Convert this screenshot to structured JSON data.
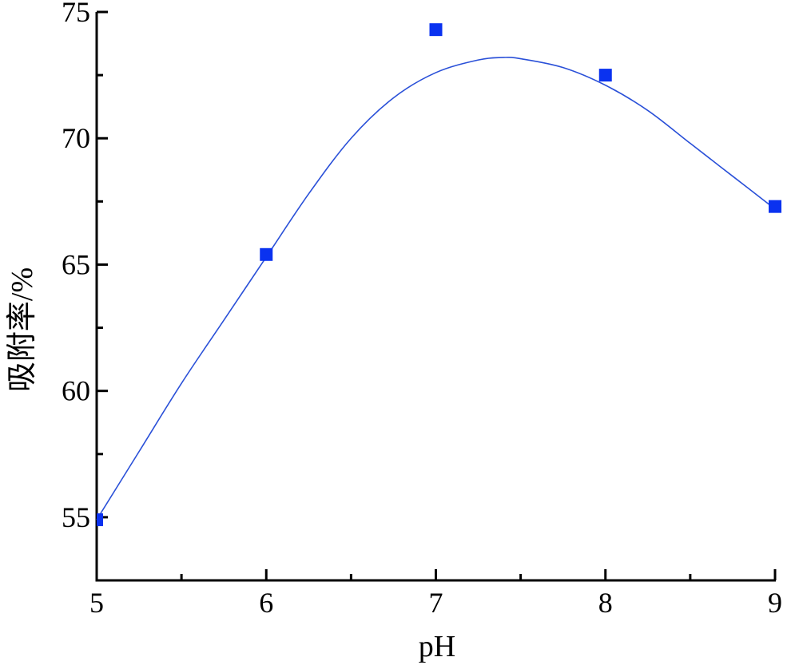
{
  "chart_data": {
    "type": "scatter",
    "title": "",
    "xlabel": "pH",
    "ylabel": "吸附率/%",
    "xlim": [
      5,
      9
    ],
    "ylim": [
      52.5,
      75
    ],
    "x_ticks": [
      5,
      6,
      7,
      8,
      9
    ],
    "x_tick_labels": [
      "5",
      "6",
      "7",
      "8",
      "9"
    ],
    "y_ticks": [
      55,
      60,
      65,
      70,
      75
    ],
    "y_tick_labels": [
      "55",
      "60",
      "65",
      "70",
      "75"
    ],
    "grid": false,
    "legend": "none",
    "series": [
      {
        "kind": "points",
        "marker": "square",
        "color": "#0a32f0",
        "x": [
          5,
          6,
          7,
          8,
          9
        ],
        "y": [
          54.9,
          65.4,
          74.3,
          72.5,
          67.3
        ]
      },
      {
        "kind": "fit-curve",
        "color": "#2a50d8",
        "x": [
          5.0,
          5.25,
          5.5,
          5.75,
          6.0,
          6.25,
          6.5,
          6.75,
          7.0,
          7.25,
          7.4,
          7.5,
          7.75,
          8.0,
          8.25,
          8.5,
          8.75,
          9.0
        ],
        "y": [
          54.9,
          57.6,
          60.3,
          62.8,
          65.3,
          67.8,
          70.0,
          71.6,
          72.6,
          73.1,
          73.2,
          73.15,
          72.8,
          72.1,
          71.1,
          69.8,
          68.5,
          67.2
        ]
      }
    ]
  }
}
